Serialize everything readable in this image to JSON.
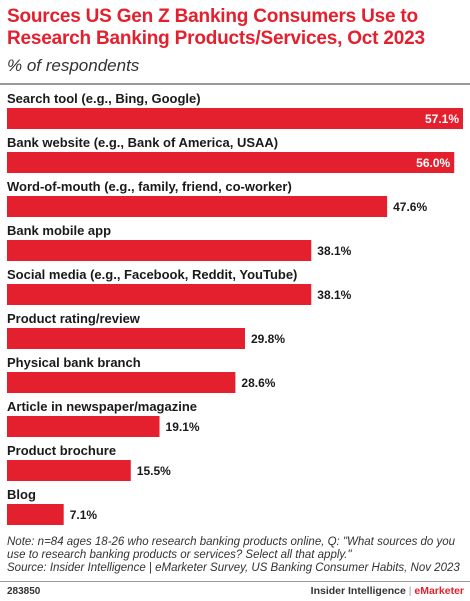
{
  "header": {
    "title": "Sources US Gen Z Banking Consumers Use to Research Banking Products/Services, Oct 2023",
    "subtitle": "% of respondents"
  },
  "chart_data": {
    "type": "bar",
    "orientation": "horizontal",
    "categories": [
      "Search tool (e.g., Bing, Google)",
      "Bank website (e.g., Bank of America, USAA)",
      "Word-of-mouth (e.g., family, friend, co-worker)",
      "Bank mobile app",
      "Social media (e.g., Facebook, Reddit, YouTube)",
      "Product rating/review",
      "Physical bank branch",
      "Article in newspaper/magazine",
      "Product brochure",
      "Blog"
    ],
    "values": [
      57.1,
      56.0,
      47.6,
      38.1,
      38.1,
      29.8,
      28.6,
      19.1,
      15.5,
      7.1
    ],
    "value_labels": [
      "57.1%",
      "56.0%",
      "47.6%",
      "38.1%",
      "38.1%",
      "29.8%",
      "28.6%",
      "19.1%",
      "15.5%",
      "7.1%"
    ],
    "xlim": [
      0,
      57.1
    ],
    "grid": false,
    "bar_color": "#e5202e"
  },
  "footer": {
    "note": "Note: n=84 ages 18-26 who research banking products online, Q: \"What sources do you use to research banking products or services? Select all that apply.\"",
    "source": "Source: Insider Intelligence | eMarketer Survey, US Banking Consumer Habits, Nov 2023",
    "chart_id": "283850",
    "brand_primary": "Insider Intelligence",
    "brand_separator": "|",
    "brand_secondary": "eMarketer"
  }
}
